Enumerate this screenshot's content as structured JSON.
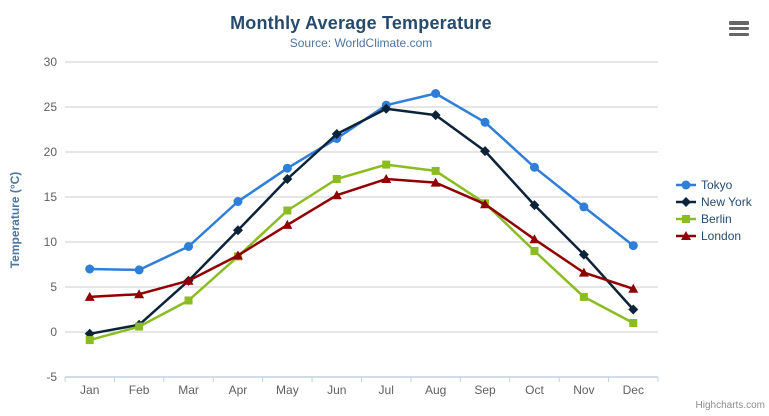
{
  "credits": "Highcharts.com",
  "icons": {
    "export_menu": "hamburger-icon"
  },
  "chart_data": {
    "type": "line",
    "title": "Monthly Average Temperature",
    "subtitle": "Source: WorldClimate.com",
    "categories": [
      "Jan",
      "Feb",
      "Mar",
      "Apr",
      "May",
      "Jun",
      "Jul",
      "Aug",
      "Sep",
      "Oct",
      "Nov",
      "Dec"
    ],
    "series": [
      {
        "name": "Tokyo",
        "marker": "circle",
        "color": "#2f7ed8",
        "values": [
          7.0,
          6.9,
          9.5,
          14.5,
          18.2,
          21.5,
          25.2,
          26.5,
          23.3,
          18.3,
          13.9,
          9.6
        ]
      },
      {
        "name": "New York",
        "marker": "diamond",
        "color": "#0d233a",
        "values": [
          -0.2,
          0.8,
          5.7,
          11.3,
          17.0,
          22.0,
          24.8,
          24.1,
          20.1,
          14.1,
          8.6,
          2.5
        ]
      },
      {
        "name": "Berlin",
        "marker": "square",
        "color": "#8bbc21",
        "values": [
          -0.9,
          0.6,
          3.5,
          8.4,
          13.5,
          17.0,
          18.6,
          17.9,
          14.3,
          9.0,
          3.9,
          1.0
        ]
      },
      {
        "name": "London",
        "marker": "triangle",
        "color": "#910000",
        "values": [
          3.9,
          4.2,
          5.7,
          8.5,
          11.9,
          15.2,
          17.0,
          16.6,
          14.2,
          10.3,
          6.6,
          4.8
        ]
      }
    ],
    "xlabel": "",
    "ylabel": "Temperature (°C)",
    "ylim": [
      -5,
      30
    ],
    "yticks": [
      -5,
      0,
      5,
      10,
      15,
      20,
      25,
      30
    ],
    "grid": true,
    "legend_position": "right"
  }
}
